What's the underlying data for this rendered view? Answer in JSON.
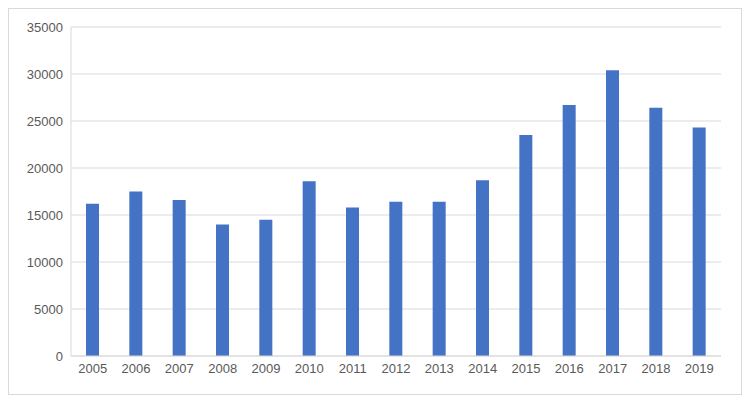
{
  "chart_data": {
    "type": "bar",
    "categories": [
      "2005",
      "2006",
      "2007",
      "2008",
      "2009",
      "2010",
      "2011",
      "2012",
      "2013",
      "2014",
      "2015",
      "2016",
      "2017",
      "2018",
      "2019"
    ],
    "values": [
      16200,
      17500,
      16600,
      14000,
      14500,
      18600,
      15800,
      16400,
      16400,
      18700,
      23500,
      26700,
      30400,
      26400,
      24300
    ],
    "color": "#4472c4",
    "ylim": [
      0,
      35000
    ],
    "yticks": [
      0,
      5000,
      10000,
      15000,
      20000,
      25000,
      30000,
      35000
    ],
    "grid": true
  }
}
